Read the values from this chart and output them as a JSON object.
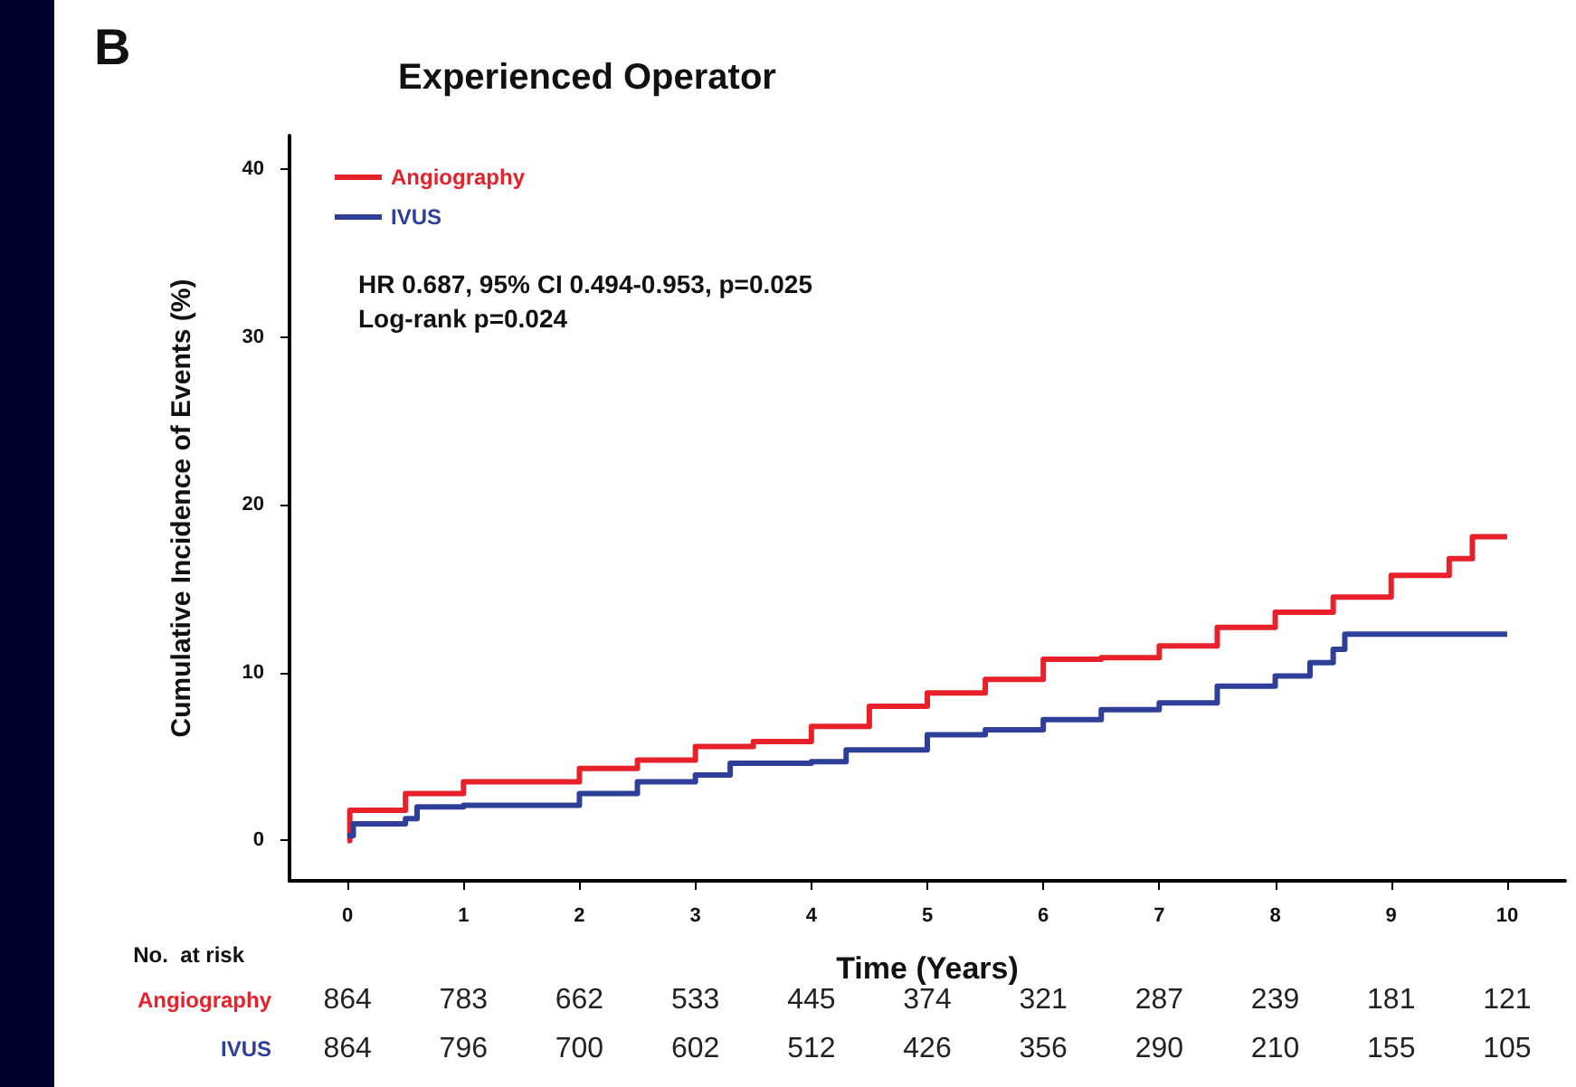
{
  "chart_data": {
    "type": "step",
    "title": "Experienced Operator",
    "xlabel": "Time (Years)",
    "ylabel": "Cumulative Incidence of Events (%)",
    "xlim": [
      -0.5,
      10.5
    ],
    "xticks": [
      0,
      1,
      2,
      3,
      4,
      5,
      6,
      7,
      8,
      9,
      10
    ],
    "ylim": [
      -2.4,
      42
    ],
    "yticks": [
      0,
      10,
      20,
      30,
      40
    ],
    "grid": false,
    "legend": "top left",
    "line_style": "solid",
    "marker": "none",
    "annotations": [
      "B",
      "HR 0.687, 95% CI 0.494-0.953, p=0.025",
      "Log-rank p=0.024",
      "No.  at risk",
      "864 783 662 533 445 374 321 287 239 181 121",
      "864 796 700 602 512 426 356 290 210 155 105"
    ],
    "series": [
      {
        "name": "Angiography",
        "color": "#e8202a",
        "x": [
          0,
          0.02,
          0.5,
          1,
          2,
          2.5,
          3,
          3.5,
          4,
          4.5,
          5,
          5.5,
          6,
          6.5,
          7,
          7.5,
          8,
          8.5,
          9,
          9.5,
          9.7,
          10
        ],
        "values": [
          0,
          1.8,
          2.8,
          3.5,
          4.3,
          4.8,
          5.6,
          5.9,
          6.8,
          8,
          8.8,
          9.6,
          10.8,
          10.9,
          11.6,
          12.7,
          13.6,
          14.5,
          15.8,
          16.8,
          18.1,
          18.1
        ]
      },
      {
        "name": "IVUS",
        "color": "#2e3f9a",
        "x": [
          0,
          0.05,
          0.5,
          0.6,
          1,
          2,
          2.5,
          3,
          3.3,
          4,
          4.3,
          5,
          5.5,
          6,
          6.5,
          7,
          7.5,
          8,
          8.3,
          8.5,
          8.6,
          10
        ],
        "values": [
          0.3,
          1,
          1.3,
          2,
          2.1,
          2.8,
          3.5,
          3.9,
          4.6,
          4.7,
          5.4,
          6.3,
          6.6,
          7.2,
          7.8,
          8.2,
          9.2,
          9.8,
          10.6,
          11.4,
          12.3,
          12.3
        ]
      }
    ]
  }
}
